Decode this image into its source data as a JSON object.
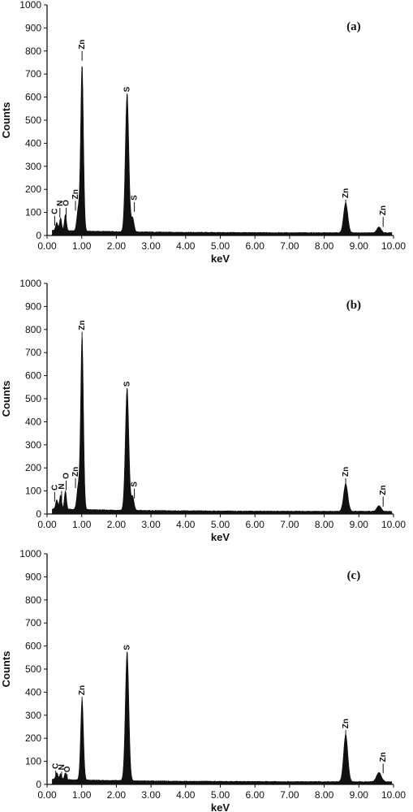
{
  "chart_data": [
    {
      "type": "area",
      "panel_label": "(a)",
      "xlabel": "keV",
      "ylabel": "Counts",
      "xlim": [
        0,
        10
      ],
      "ylim": [
        0,
        1000
      ],
      "x_ticks": [
        "0.00",
        "1.00",
        "2.00",
        "3.00",
        "4.00",
        "5.00",
        "6.00",
        "7.00",
        "8.00",
        "9.00",
        "10.00"
      ],
      "y_ticks": [
        "0",
        "100",
        "200",
        "300",
        "400",
        "500",
        "600",
        "700",
        "800",
        "900",
        "1000"
      ],
      "peaks": [
        {
          "element": "C",
          "x": 0.28,
          "y": 35,
          "width": 0.03
        },
        {
          "element": "N",
          "x": 0.39,
          "y": 55,
          "width": 0.03
        },
        {
          "element": "O",
          "x": 0.53,
          "y": 70,
          "width": 0.03
        },
        {
          "element": "Zn",
          "x": 0.9,
          "y": 95,
          "width": 0.04
        },
        {
          "element": "Zn",
          "x": 1.01,
          "y": 720,
          "width": 0.04
        },
        {
          "element": "S",
          "x": 2.31,
          "y": 600,
          "width": 0.05
        },
        {
          "element": "S",
          "x": 2.47,
          "y": 60,
          "width": 0.04
        },
        {
          "element": "Zn",
          "x": 8.62,
          "y": 130,
          "width": 0.06
        },
        {
          "element": "Zn",
          "x": 9.58,
          "y": 25,
          "width": 0.06
        }
      ],
      "labels": [
        {
          "text": "C",
          "x": 0.22,
          "y": 85
        },
        {
          "text": "N",
          "x": 0.37,
          "y": 120
        },
        {
          "text": "O",
          "x": 0.55,
          "y": 120
        },
        {
          "text": "Zn",
          "x": 0.82,
          "y": 150
        },
        {
          "text": "Zn",
          "x": 1.01,
          "y": 800
        },
        {
          "text": "S",
          "x": 2.31,
          "y": 615
        },
        {
          "text": "S",
          "x": 2.52,
          "y": 145
        },
        {
          "text": "Zn",
          "x": 8.62,
          "y": 155
        },
        {
          "text": "Zn",
          "x": 9.7,
          "y": 80
        }
      ]
    },
    {
      "type": "area",
      "panel_label": "(b)",
      "xlabel": "keV",
      "ylabel": "Counts",
      "xlim": [
        0,
        10
      ],
      "ylim": [
        0,
        1000
      ],
      "x_ticks": [
        "0.00",
        "1.00",
        "2.00",
        "3.00",
        "4.00",
        "5.00",
        "6.00",
        "7.00",
        "8.00",
        "9.00",
        "10.00"
      ],
      "y_ticks": [
        "0",
        "100",
        "200",
        "300",
        "400",
        "500",
        "600",
        "700",
        "800",
        "900",
        "1000"
      ],
      "peaks": [
        {
          "element": "C",
          "x": 0.28,
          "y": 40,
          "width": 0.03
        },
        {
          "element": "N",
          "x": 0.39,
          "y": 60,
          "width": 0.03
        },
        {
          "element": "O",
          "x": 0.53,
          "y": 80,
          "width": 0.03
        },
        {
          "element": "Zn",
          "x": 0.9,
          "y": 100,
          "width": 0.04
        },
        {
          "element": "Zn",
          "x": 1.01,
          "y": 750,
          "width": 0.04
        },
        {
          "element": "S",
          "x": 2.31,
          "y": 530,
          "width": 0.05
        },
        {
          "element": "S",
          "x": 2.47,
          "y": 60,
          "width": 0.04
        },
        {
          "element": "Zn",
          "x": 8.62,
          "y": 120,
          "width": 0.06
        },
        {
          "element": "Zn",
          "x": 9.58,
          "y": 25,
          "width": 0.06
        }
      ],
      "labels": [
        {
          "text": "C",
          "x": 0.22,
          "y": 95
        },
        {
          "text": "N",
          "x": 0.42,
          "y": 100
        },
        {
          "text": "O",
          "x": 0.55,
          "y": 145
        },
        {
          "text": "Zn",
          "x": 0.82,
          "y": 155
        },
        {
          "text": "Zn",
          "x": 1.01,
          "y": 790
        },
        {
          "text": "S",
          "x": 2.31,
          "y": 545
        },
        {
          "text": "S",
          "x": 2.52,
          "y": 110
        },
        {
          "text": "Zn",
          "x": 8.62,
          "y": 155
        },
        {
          "text": "Zn",
          "x": 9.7,
          "y": 75
        }
      ]
    },
    {
      "type": "area",
      "panel_label": "(c)",
      "xlabel": "keV",
      "ylabel": "Counts",
      "xlim": [
        0,
        10
      ],
      "ylim": [
        0,
        1000
      ],
      "x_ticks": [
        "0.00",
        "1.00",
        "2.00",
        "3.00",
        "4.00",
        "5.00",
        "6.00",
        "7.00",
        "8.00",
        "9.00",
        "10.00"
      ],
      "y_ticks": [
        "0",
        "100",
        "200",
        "300",
        "400",
        "500",
        "600",
        "700",
        "800",
        "900",
        "1000"
      ],
      "peaks": [
        {
          "element": "C",
          "x": 0.28,
          "y": 30,
          "width": 0.03
        },
        {
          "element": "N",
          "x": 0.39,
          "y": 25,
          "width": 0.03
        },
        {
          "element": "O",
          "x": 0.53,
          "y": 30,
          "width": 0.03
        },
        {
          "element": "Zn",
          "x": 1.01,
          "y": 350,
          "width": 0.04
        },
        {
          "element": "S",
          "x": 2.31,
          "y": 560,
          "width": 0.05
        },
        {
          "element": "Zn",
          "x": 8.62,
          "y": 205,
          "width": 0.06
        },
        {
          "element": "Zn",
          "x": 9.58,
          "y": 40,
          "width": 0.07
        }
      ],
      "labels": [
        {
          "text": "C",
          "x": 0.25,
          "y": 60
        },
        {
          "text": "N",
          "x": 0.42,
          "y": 55
        },
        {
          "text": "O",
          "x": 0.58,
          "y": 45
        },
        {
          "text": "Zn",
          "x": 1.01,
          "y": 380
        },
        {
          "text": "S",
          "x": 2.31,
          "y": 575
        },
        {
          "text": "Zn",
          "x": 8.62,
          "y": 235
        },
        {
          "text": "Zn",
          "x": 9.7,
          "y": 90
        }
      ]
    }
  ]
}
